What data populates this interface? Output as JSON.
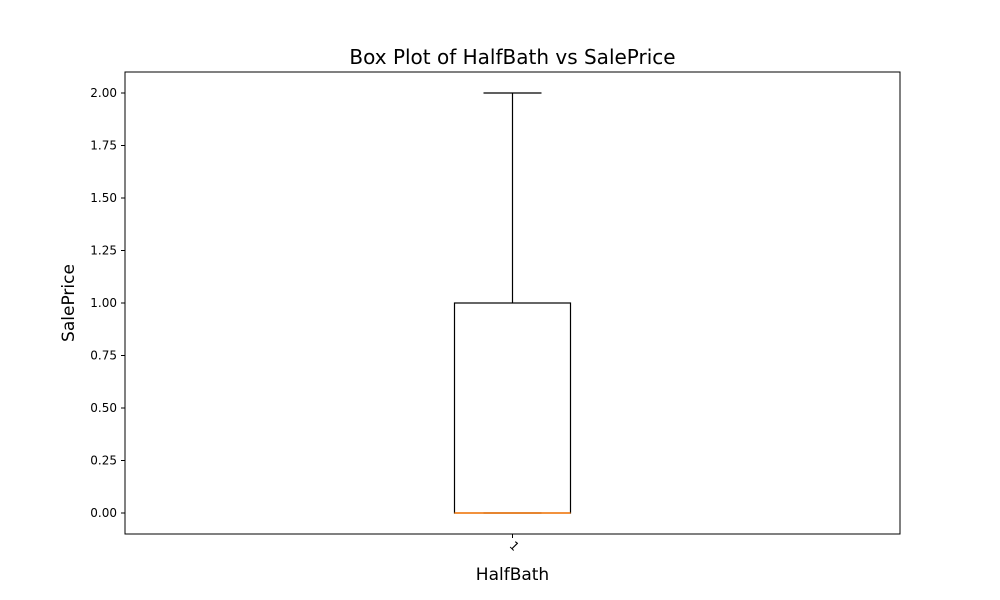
{
  "chart_data": {
    "type": "box",
    "title": "Box Plot of HalfBath vs SalePrice",
    "xlabel": "HalfBath",
    "ylabel": "SalePrice",
    "categories": [
      "1"
    ],
    "ylim": [
      -0.1,
      2.1
    ],
    "yticks": [
      "0.00",
      "0.25",
      "0.50",
      "0.75",
      "1.00",
      "1.25",
      "1.50",
      "1.75",
      "2.00"
    ],
    "boxes": [
      {
        "category": "1",
        "whisker_low": 0.0,
        "q1": 0.0,
        "median": 0.0,
        "q3": 1.0,
        "whisker_high": 2.0
      }
    ],
    "colors": {
      "box": "#000000",
      "median": "#ff7f0e"
    },
    "grid": false,
    "legend": "none"
  }
}
